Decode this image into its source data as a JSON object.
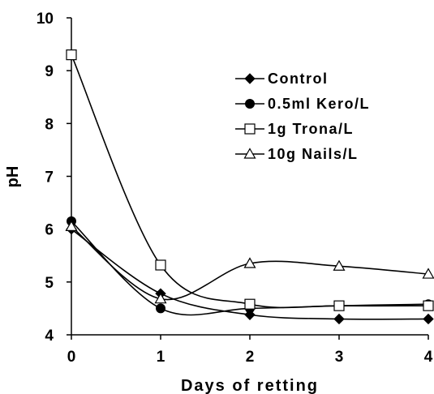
{
  "chart_data": {
    "type": "line",
    "xlabel": "Days of retting",
    "ylabel": "pH",
    "x": [
      0,
      1,
      2,
      3,
      4
    ],
    "xlim": [
      0,
      4
    ],
    "ylim": [
      4,
      10
    ],
    "xticks": [
      "0",
      "1",
      "2",
      "3",
      "4"
    ],
    "yticks": [
      "4",
      "5",
      "6",
      "7",
      "8",
      "9",
      "10"
    ],
    "grid": false,
    "legend_position": "top-right",
    "series": [
      {
        "name": "Control",
        "marker": "diamond-filled",
        "values": [
          6.0,
          4.78,
          4.38,
          4.3,
          4.3
        ]
      },
      {
        "name": "0.5ml Kero/L",
        "marker": "circle-filled",
        "values": [
          6.15,
          4.5,
          4.5,
          4.55,
          4.58
        ]
      },
      {
        "name": "1g Trona/L",
        "marker": "square-open",
        "values": [
          9.3,
          5.32,
          4.58,
          4.55,
          4.55
        ]
      },
      {
        "name": "10g Nails/L",
        "marker": "triangle-open",
        "values": [
          6.05,
          4.68,
          5.35,
          5.3,
          5.15
        ]
      }
    ]
  }
}
